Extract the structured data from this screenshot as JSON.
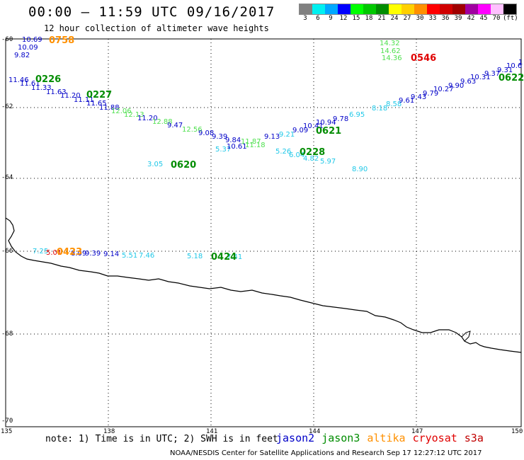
{
  "header": {
    "title": "00:00 – 11:59 UTC 09/16/2017",
    "subtitle": "12 hour collection of altimeter wave heights"
  },
  "legend": {
    "unit": "(ft)",
    "bins": [
      {
        "label": "3",
        "color": "#808080"
      },
      {
        "label": "6",
        "color": "#00f0f0"
      },
      {
        "label": "9",
        "color": "#00a8ff"
      },
      {
        "label": "12",
        "color": "#0000ff"
      },
      {
        "label": "15",
        "color": "#00ff00"
      },
      {
        "label": "18",
        "color": "#00c800"
      },
      {
        "label": "21",
        "color": "#008c00"
      },
      {
        "label": "24",
        "color": "#ffff00"
      },
      {
        "label": "27",
        "color": "#ffd000"
      },
      {
        "label": "30",
        "color": "#ff9000"
      },
      {
        "label": "33",
        "color": "#ff0000"
      },
      {
        "label": "36",
        "color": "#d00000"
      },
      {
        "label": "39",
        "color": "#a00000"
      },
      {
        "label": "42",
        "color": "#a000a0"
      },
      {
        "label": "45",
        "color": "#ff00ff"
      },
      {
        "label": "70",
        "color": "#ffc0ff"
      },
      {
        "label": "(ft)",
        "color": "#000000"
      }
    ]
  },
  "axes": {
    "lat_labels": [
      "-60",
      "-62",
      "-64",
      "-66",
      "-68",
      "-70"
    ],
    "lon_labels": [
      "135",
      "138",
      "141",
      "144",
      "147",
      "150"
    ]
  },
  "colors": {
    "jason2": "#0000c8",
    "jason3": "#008c00",
    "altika": "#ff9000",
    "cryosat": "#e00000",
    "cyan": "#20c8e8",
    "lightgreen": "#50e050",
    "blue": "#0000c8"
  },
  "observations": [
    {
      "text": "10.69",
      "c": "blue"
    },
    {
      "text": "10.09",
      "c": "blue"
    },
    {
      "text": "9.82",
      "c": "blue"
    },
    {
      "text": "11.46",
      "c": "blue"
    },
    {
      "text": "11.61",
      "c": "blue"
    },
    {
      "text": "11.33",
      "c": "blue"
    },
    {
      "text": "11.63",
      "c": "blue"
    },
    {
      "text": "11.20",
      "c": "blue"
    },
    {
      "text": "11.11",
      "c": "blue"
    },
    {
      "text": "11.65",
      "c": "blue"
    },
    {
      "text": "11.88",
      "c": "blue"
    },
    {
      "text": "12.06",
      "c": "lightgreen"
    },
    {
      "text": "12.13",
      "c": "lightgreen"
    },
    {
      "text": "11.20",
      "c": "blue"
    },
    {
      "text": "12.88",
      "c": "lightgreen"
    },
    {
      "text": "9.47",
      "c": "blue"
    },
    {
      "text": "12.56",
      "c": "lightgreen"
    },
    {
      "text": "9.08",
      "c": "blue"
    },
    {
      "text": "9.39",
      "c": "blue"
    },
    {
      "text": "9.84",
      "c": "blue"
    },
    {
      "text": "5.37",
      "c": "cyan"
    },
    {
      "text": "10.61",
      "c": "blue"
    },
    {
      "text": "11.87",
      "c": "lightgreen"
    },
    {
      "text": "11.18",
      "c": "lightgreen"
    },
    {
      "text": "9.13",
      "c": "blue"
    },
    {
      "text": "9.21",
      "c": "cyan"
    },
    {
      "text": "9.09",
      "c": "blue"
    },
    {
      "text": "10.41",
      "c": "blue"
    },
    {
      "text": "10.94",
      "c": "blue"
    },
    {
      "text": "9.78",
      "c": "blue"
    },
    {
      "text": "6.95",
      "c": "cyan"
    },
    {
      "text": "5.26",
      "c": "cyan"
    },
    {
      "text": "6.04",
      "c": "cyan"
    },
    {
      "text": "4.82",
      "c": "cyan"
    },
    {
      "text": "5.97",
      "c": "cyan"
    },
    {
      "text": "8.90",
      "c": "cyan"
    },
    {
      "text": "3.05",
      "c": "cyan"
    },
    {
      "text": "14.32",
      "c": "lightgreen"
    },
    {
      "text": "14.62",
      "c": "lightgreen"
    },
    {
      "text": "14.36",
      "c": "lightgreen"
    },
    {
      "text": "8.18",
      "c": "cyan"
    },
    {
      "text": "8.58",
      "c": "cyan"
    },
    {
      "text": "9.61",
      "c": "blue"
    },
    {
      "text": "9.43",
      "c": "blue"
    },
    {
      "text": "9.79",
      "c": "blue"
    },
    {
      "text": "10.27",
      "c": "blue"
    },
    {
      "text": "9.90",
      "c": "blue"
    },
    {
      "text": "9.63",
      "c": "blue"
    },
    {
      "text": "10.31",
      "c": "blue"
    },
    {
      "text": "9.37",
      "c": "blue"
    },
    {
      "text": "9.31",
      "c": "blue"
    },
    {
      "text": "10.6",
      "c": "blue"
    },
    {
      "text": "1",
      "c": "blue"
    },
    {
      "text": "7.25",
      "c": "cyan"
    },
    {
      "text": "5.01",
      "c": "cryosat"
    },
    {
      "text": "8.09",
      "c": "blue"
    },
    {
      "text": "9.39",
      "c": "blue"
    },
    {
      "text": "9.14",
      "c": "blue"
    },
    {
      "text": "5.51",
      "c": "cyan"
    },
    {
      "text": "7.46",
      "c": "cyan"
    },
    {
      "text": "5.18",
      "c": "cyan"
    },
    {
      "text": "7.41",
      "c": "cyan"
    }
  ],
  "time_labels": [
    {
      "text": "0758",
      "c": "altika"
    },
    {
      "text": "0226",
      "c": "jason3"
    },
    {
      "text": "0227",
      "c": "jason3"
    },
    {
      "text": "0620",
      "c": "jason3"
    },
    {
      "text": "0621",
      "c": "jason3"
    },
    {
      "text": "0228",
      "c": "jason3"
    },
    {
      "text": "0546",
      "c": "cryosat"
    },
    {
      "text": "0622",
      "c": "jason3"
    },
    {
      "text": "0423",
      "c": "altika"
    },
    {
      "text": "0424",
      "c": "jason3"
    }
  ],
  "footer": {
    "note": "note:  1) Time is in UTC;  2) SWH is in feet",
    "satellites": [
      {
        "name": "jason2",
        "color": "#0000c8"
      },
      {
        "name": "jason3",
        "color": "#008c00"
      },
      {
        "name": "altika",
        "color": "#ff9000"
      },
      {
        "name": "cryosat",
        "color": "#e00000"
      },
      {
        "name": "s3a",
        "color": "#c00000"
      }
    ],
    "credit": "NOAA/NESDIS Center for Satellite Applications and Research    Sep 17 12:27:12 UTC 2017"
  }
}
